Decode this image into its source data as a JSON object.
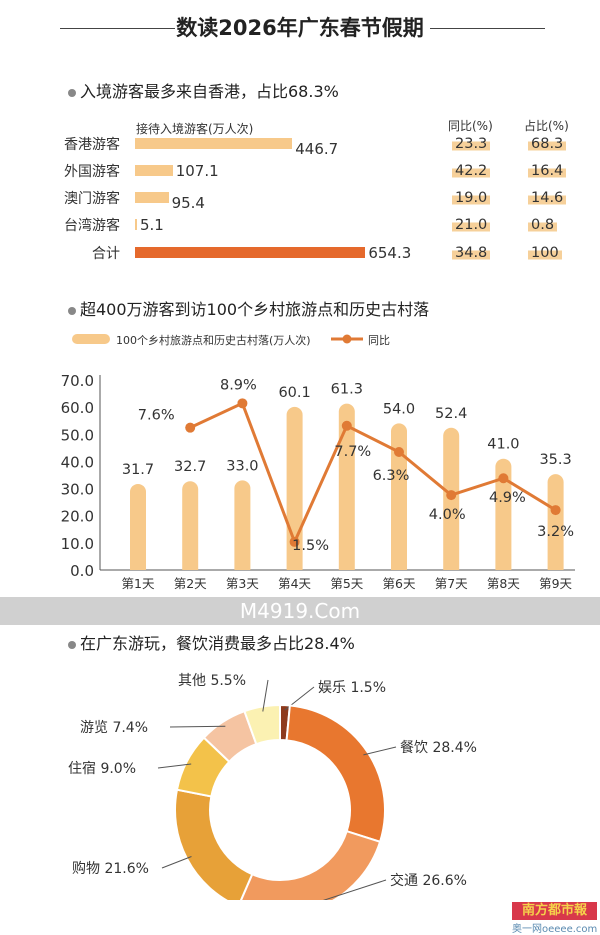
{
  "title": "数读2026年广东春节假期",
  "section1": {
    "heading": "入境游客最多来自香港，占比68.3%",
    "col_bar": "接待入境游客(万人次)",
    "col_yoy": "同比(%)",
    "col_share": "占比(%)",
    "rows": [
      {
        "label": "香港游客",
        "value": "446.7",
        "yoy": "23.3",
        "share": "68.3"
      },
      {
        "label": "外国游客",
        "value": "107.1",
        "yoy": "42.2",
        "share": "16.4"
      },
      {
        "label": "澳门游客",
        "value": "95.4",
        "yoy": "19.0",
        "share": "14.6"
      },
      {
        "label": "台湾游客",
        "value": "5.1",
        "yoy": "21.0",
        "share": "0.8"
      },
      {
        "label": "合计",
        "value": "654.3",
        "yoy": "34.8",
        "share": "100"
      }
    ],
    "colors": {
      "bar": "#f7c98a",
      "total": "#e5692c"
    }
  },
  "section2": {
    "heading": "超400万游客到访100个乡村旅游点和历史古村落"
  },
  "section3": {
    "heading": "在广东游玩，餐饮消费最多占比28.4%"
  },
  "watermark": "M4919.Com",
  "logo": "南方都市報",
  "logo_sub": "奥一网oeeee.com",
  "chart_data": [
    {
      "type": "bar",
      "categories": [
        "香港游客",
        "外国游客",
        "澳门游客",
        "台湾游客",
        "合计"
      ],
      "values": [
        446.7,
        107.1,
        95.4,
        5.1,
        654.3
      ],
      "ylabel": "接待入境游客(万人次)",
      "yoy": [
        23.3,
        42.2,
        19.0,
        21.0,
        34.8
      ],
      "share": [
        68.3,
        16.4,
        14.6,
        0.8,
        100
      ]
    },
    {
      "type": "bar+line",
      "categories": [
        "第1天",
        "第2天",
        "第3天",
        "第4天",
        "第5天",
        "第6天",
        "第7天",
        "第8天",
        "第9天"
      ],
      "series": [
        {
          "name": "100个乡村旅游点和历史古村落(万人次)",
          "type": "bar",
          "values": [
            31.7,
            32.7,
            33.0,
            60.1,
            61.3,
            54.0,
            52.4,
            41.0,
            35.3
          ],
          "labels": [
            "31.7",
            "32.7",
            "33.0",
            "60.1",
            "61.3",
            "54.0",
            "52.4",
            "41.0",
            "35.3"
          ],
          "color": "#f7c98a"
        },
        {
          "name": "同比",
          "type": "line",
          "values": [
            null,
            7.6,
            8.9,
            1.5,
            7.7,
            6.3,
            4.0,
            4.9,
            3.2
          ],
          "labels": [
            "",
            "7.6%",
            "8.9%",
            "1.5%",
            "7.7%",
            "6.3%",
            "4.0%",
            "4.9%",
            "3.2%"
          ],
          "color": "#e07a35"
        }
      ],
      "yticks": [
        "0.0",
        "10.0",
        "20.0",
        "30.0",
        "40.0",
        "50.0",
        "60.0",
        "70.0"
      ],
      "ylim": [
        0,
        70
      ],
      "legend": "top-left"
    },
    {
      "type": "pie",
      "donut": true,
      "slices": [
        {
          "label": "娱乐",
          "value": 1.5,
          "text": "娱乐  1.5%",
          "color": "#8e3a1c"
        },
        {
          "label": "餐饮",
          "value": 28.4,
          "text": "餐饮  28.4%",
          "color": "#e8772f"
        },
        {
          "label": "交通",
          "value": 26.6,
          "text": "交通  26.6%",
          "color": "#f19a5e"
        },
        {
          "label": "购物",
          "value": 21.6,
          "text": "购物  21.6%",
          "color": "#e7a138"
        },
        {
          "label": "住宿",
          "value": 9.0,
          "text": "住宿  9.0%",
          "color": "#f3c24a"
        },
        {
          "label": "游览",
          "value": 7.4,
          "text": "游览  7.4%",
          "color": "#f5c4a2"
        },
        {
          "label": "其他",
          "value": 5.5,
          "text": "其他  5.5%",
          "color": "#fbf1b2"
        }
      ]
    }
  ]
}
